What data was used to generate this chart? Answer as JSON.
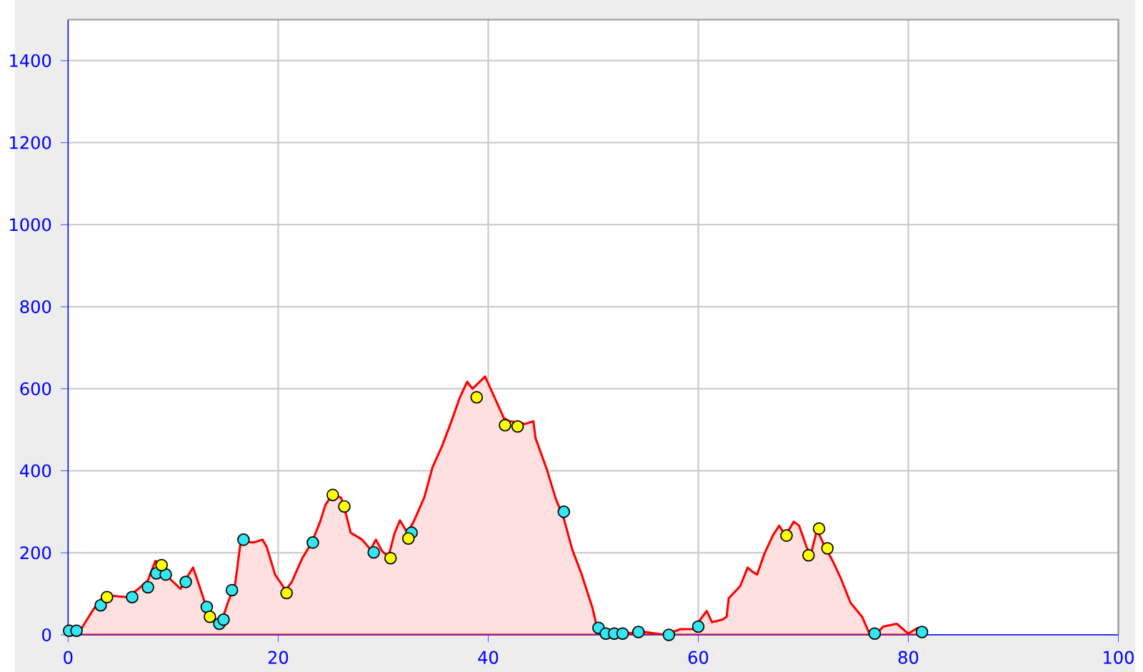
{
  "chart_data": {
    "type": "area",
    "xlim": [
      0,
      100
    ],
    "ylim": [
      0,
      1500
    ],
    "xticks": [
      0,
      20,
      40,
      60,
      80,
      100
    ],
    "yticks": [
      0,
      200,
      400,
      600,
      800,
      1000,
      1200,
      1400
    ],
    "grid": true,
    "series": [
      {
        "color": "#ff0000",
        "x": [
          0,
          0.9,
          2.3,
          3.2,
          4.3,
          5.6,
          6.7,
          7.6,
          8.3,
          8.8,
          9.3,
          10,
          10.7,
          11.2,
          11.9,
          12.5,
          13.2,
          14,
          14.5,
          15.2,
          15.9,
          16.4,
          16.9,
          17.6,
          18.5,
          18.9,
          19.7,
          20.7,
          21.3,
          22.3,
          23.2,
          24,
          24.5,
          25.2,
          26,
          26.5,
          26.9,
          28,
          28.8,
          29.3,
          29.9,
          30.5,
          31.1,
          31.6,
          32.3,
          32.9,
          33.9,
          34.7,
          35.6,
          36.5,
          37.3,
          38,
          38.5,
          38.9,
          39.7,
          40.3,
          40.9,
          41.5,
          42,
          42.7,
          43.5,
          44.3,
          44.5,
          45.6,
          46.4,
          47.2,
          48,
          48.9,
          49.9,
          50.4,
          50.9,
          54.9,
          56.9,
          58.3,
          59.6,
          60.3,
          60.8,
          61.3,
          62.3,
          62.7,
          62.9,
          64,
          64.7,
          65.2,
          65.6,
          66.3,
          67.1,
          67.7,
          68.3,
          69.1,
          69.6,
          70.3,
          70.7,
          71.3,
          72,
          72.8,
          73.6,
          74.5,
          75.6,
          76.3,
          76.9,
          77.6,
          78.9,
          80,
          80.9,
          81.6
        ],
        "values": [
          0,
          0,
          58,
          89,
          95,
          92,
          112,
          133,
          180,
          174,
          147,
          129,
          112,
          136,
          164,
          119,
          65,
          34,
          24,
          78,
          123,
          221,
          228,
          225,
          232,
          215,
          147,
          109,
          129,
          187,
          225,
          276,
          317,
          344,
          334,
          290,
          249,
          232,
          208,
          232,
          204,
          191,
          249,
          279,
          249,
          276,
          334,
          409,
          460,
          521,
          579,
          617,
          600,
          610,
          630,
          596,
          562,
          528,
          521,
          518,
          514,
          521,
          480,
          402,
          334,
          283,
          208,
          147,
          68,
          14,
          0,
          7,
          0,
          14,
          14,
          41,
          58,
          31,
          37,
          44,
          89,
          119,
          164,
          153,
          147,
          198,
          242,
          266,
          242,
          276,
          266,
          215,
          194,
          256,
          218,
          180,
          136,
          78,
          44,
          3,
          0,
          20,
          27,
          3,
          17,
          0
        ]
      },
      {
        "type": "scatter",
        "color": "#33e6f0",
        "marker": "circle",
        "x": [
          0.1,
          0.8,
          3.1,
          6.1,
          7.6,
          8.4,
          9.3,
          11.2,
          13.2,
          14.4,
          14.8,
          15.6,
          16.7,
          23.3,
          29.1,
          32.7,
          47.2,
          50.5,
          51.2,
          52,
          52.8,
          54.3,
          57.2,
          60,
          76.8,
          81.3
        ],
        "values": [
          10,
          10,
          72,
          92,
          116,
          150,
          147,
          129,
          68,
          27,
          37,
          109,
          232,
          225,
          201,
          249,
          300,
          17,
          3,
          3,
          3,
          7,
          0,
          20,
          3,
          7
        ]
      },
      {
        "type": "scatter",
        "color": "#ffff00",
        "marker": "circle",
        "x": [
          3.7,
          8.9,
          13.5,
          20.8,
          25.2,
          26.3,
          30.7,
          32.4,
          38.9,
          41.6,
          42.8,
          68.4,
          70.5,
          71.5,
          72.3
        ],
        "values": [
          92,
          170,
          44,
          102,
          341,
          313,
          187,
          235,
          579,
          511,
          508,
          242,
          194,
          259,
          211
        ]
      }
    ]
  }
}
